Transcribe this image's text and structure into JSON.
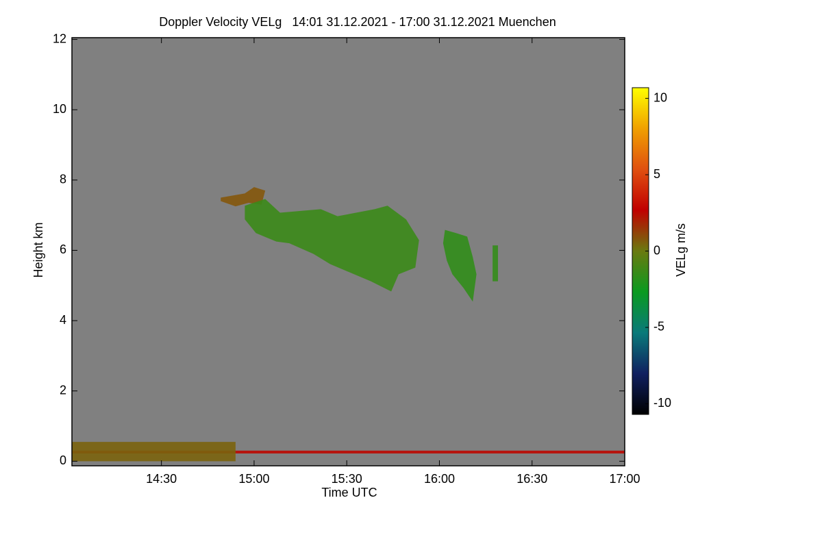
{
  "chart_data": {
    "type": "heatmap",
    "title": "Doppler Velocity VELg   14:01 31.12.2021 - 17:00 31.12.2021 Muenchen",
    "x_label": "Time UTC",
    "y_label": "Height km",
    "xlim": [
      14.017,
      17.0
    ],
    "ylim": [
      -0.13,
      12.05
    ],
    "xticks": [
      {
        "value": 14.5,
        "label": "14:30"
      },
      {
        "value": 15,
        "label": "15:00"
      },
      {
        "value": 15.5,
        "label": "15:30"
      },
      {
        "value": 16,
        "label": "16:00"
      },
      {
        "value": 16.5,
        "label": "16:30"
      },
      {
        "value": 17,
        "label": "17:00"
      }
    ],
    "yticks": [
      0,
      2,
      4,
      6,
      8,
      10,
      12
    ],
    "background": "#808080",
    "colorbar": {
      "label": "VELg m/s",
      "lim": [
        -10.7,
        10.7
      ],
      "ticks": [
        -10,
        -5,
        0,
        5,
        10
      ],
      "colors": [
        "#000000",
        "#102060",
        "#0a7a7a",
        "#0a9a20",
        "#6a7a10",
        "#c00000",
        "#e05010",
        "#f0a000",
        "#ffff00"
      ]
    },
    "regions": [
      {
        "x": [
          14.82,
          14.95,
          15.0,
          15.06,
          15.04,
          14.97,
          14.9,
          14.82
        ],
        "y": [
          7.5,
          7.62,
          7.8,
          7.7,
          7.3,
          7.35,
          7.25,
          7.4
        ],
        "value": 0.8
      },
      {
        "x": [
          14.95,
          15.06,
          15.14,
          15.36,
          15.45,
          15.65,
          15.72,
          15.82,
          15.89,
          15.87,
          15.78,
          15.74,
          15.63,
          15.54,
          15.41,
          15.32,
          15.19,
          15.12,
          15.01,
          14.95
        ],
        "y": [
          7.27,
          7.46,
          7.07,
          7.17,
          6.97,
          7.17,
          7.27,
          6.88,
          6.29,
          5.51,
          5.32,
          4.83,
          5.12,
          5.32,
          5.61,
          5.9,
          6.2,
          6.25,
          6.49,
          6.88
        ],
        "value": -1.3
      },
      {
        "x": [
          16.03,
          16.09,
          16.15,
          16.18,
          16.2,
          16.18,
          16.13,
          16.07,
          16.04,
          16.02
        ],
        "y": [
          6.58,
          6.49,
          6.39,
          5.81,
          5.32,
          4.54,
          4.93,
          5.32,
          5.71,
          6.2
        ],
        "value": -1.6
      },
      {
        "x": [
          16.287,
          16.316,
          16.316,
          16.287
        ],
        "y": [
          6.14,
          6.14,
          5.12,
          5.12
        ],
        "value": -1.5
      },
      {
        "x": [
          14.017,
          17.0,
          17.0,
          14.017
        ],
        "y": [
          0.3,
          0.3,
          0.22,
          0.22
        ],
        "value": 2.5
      },
      {
        "x": [
          14.017,
          14.9,
          14.9,
          14.017
        ],
        "y": [
          0.55,
          0.55,
          0.0,
          0.0
        ],
        "value": 0.5
      }
    ]
  }
}
